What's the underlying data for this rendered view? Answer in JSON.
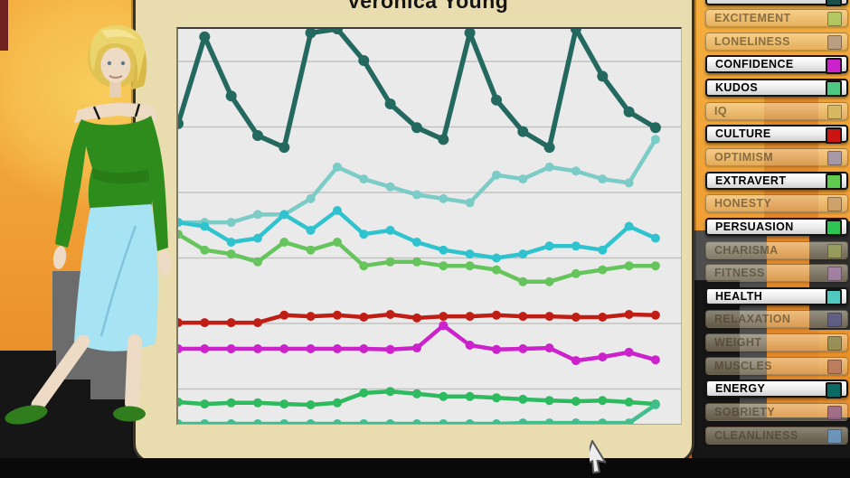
{
  "chart_panel": {
    "title": "Veronica Young"
  },
  "sidebar": {
    "items": [
      {
        "label": "",
        "active": true,
        "swatch": "#19514a",
        "partial": true
      },
      {
        "label": "EXCITEMENT",
        "active": false,
        "swatch": "#a9c95f"
      },
      {
        "label": "LONELINESS",
        "active": false,
        "swatch": "#b39a85"
      },
      {
        "label": "CONFIDENCE",
        "active": true,
        "swatch": "#cb22cb"
      },
      {
        "label": "KUDOS",
        "active": true,
        "swatch": "#4ec983"
      },
      {
        "label": "IQ",
        "active": false,
        "swatch": "#d5b95f"
      },
      {
        "label": "CULTURE",
        "active": true,
        "swatch": "#cc1512"
      },
      {
        "label": "OPTIMISM",
        "active": false,
        "swatch": "#9b93af"
      },
      {
        "label": "EXTRAVERT",
        "active": true,
        "swatch": "#5fca4d"
      },
      {
        "label": "HONESTY",
        "active": false,
        "swatch": "#c9a06b"
      },
      {
        "label": "PERSUASION",
        "active": true,
        "swatch": "#2fc553"
      },
      {
        "label": "CHARISMA",
        "active": false,
        "swatch": "#9ba35b"
      },
      {
        "label": "FITNESS",
        "active": false,
        "swatch": "#a781ab"
      },
      {
        "label": "HEALTH",
        "active": true,
        "swatch": "#4fc9c0"
      },
      {
        "label": "RELAXATION",
        "active": false,
        "swatch": "#5a5a88"
      },
      {
        "label": "WEIGHT",
        "active": false,
        "swatch": "#8b8b55"
      },
      {
        "label": "MUSCLES",
        "active": false,
        "swatch": "#b4755c"
      },
      {
        "label": "ENERGY",
        "active": true,
        "swatch": "#0b6b64"
      },
      {
        "label": "SOBRIETY",
        "active": false,
        "swatch": "#96628b"
      },
      {
        "label": "CLEANLINESS",
        "active": false,
        "swatch": "#6b9bc9"
      }
    ]
  },
  "chart_data": {
    "type": "line",
    "title": "Veronica Young",
    "n_points": 19,
    "x_labels_visible": false,
    "ylabel": "",
    "ylim": [
      0,
      100
    ],
    "grid": true,
    "series": [
      {
        "name": "HEALTH",
        "color": "#7bcbc6",
        "values": [
          51,
          51,
          51,
          53,
          53,
          57,
          65,
          62,
          60,
          58,
          57,
          56,
          63,
          62,
          65,
          64,
          62,
          61,
          72
        ]
      },
      {
        "name": "EXTRAVERT",
        "color": "#66c45c",
        "values": [
          48,
          44,
          43,
          41,
          46,
          44,
          46,
          40,
          41,
          41,
          40,
          40,
          39,
          36,
          36,
          38,
          39,
          40,
          40
        ]
      },
      {
        "name": "unlabeled",
        "color": "#2ec3ce",
        "values": [
          51,
          50,
          46,
          47,
          53,
          49,
          54,
          48,
          49,
          46,
          44,
          43,
          42,
          43,
          45,
          45,
          44,
          50,
          47
        ]
      },
      {
        "name": "ENERGY",
        "color": "#24695f",
        "values": [
          76,
          98,
          83,
          73,
          70,
          99,
          100,
          92,
          81,
          75,
          72,
          99,
          82,
          74,
          70,
          100,
          88,
          79,
          75
        ]
      },
      {
        "name": "CULTURE",
        "color": "#c01d15",
        "values": [
          25.6,
          25.6,
          25.6,
          25.6,
          27.5,
          27.2,
          27.5,
          27,
          27.7,
          26.8,
          27.2,
          27.2,
          27.5,
          27.2,
          27.2,
          27,
          27,
          27.7,
          27.5
        ]
      },
      {
        "name": "CONFIDENCE",
        "color": "#cb22cb",
        "values": [
          19,
          19,
          19,
          19,
          19,
          19,
          19,
          19,
          18.8,
          19.2,
          24.9,
          19.9,
          18.8,
          19,
          19.2,
          16,
          16.9,
          18.1,
          16.2
        ]
      },
      {
        "name": "PERSUASION",
        "color": "#2eba5e",
        "values": [
          5.5,
          5,
          5.3,
          5.3,
          5,
          4.8,
          5.3,
          7.8,
          8.2,
          7.6,
          6.9,
          6.9,
          6.6,
          6.2,
          5.9,
          5.7,
          5.9,
          5.5,
          5
        ]
      },
      {
        "name": "KUDOS",
        "color": "#42bd8e",
        "values": [
          0,
          0,
          0,
          0,
          0,
          0,
          0,
          0,
          0,
          0,
          0,
          0,
          0,
          0.2,
          0.2,
          0.2,
          0.2,
          0.2,
          4.8
        ]
      }
    ]
  }
}
